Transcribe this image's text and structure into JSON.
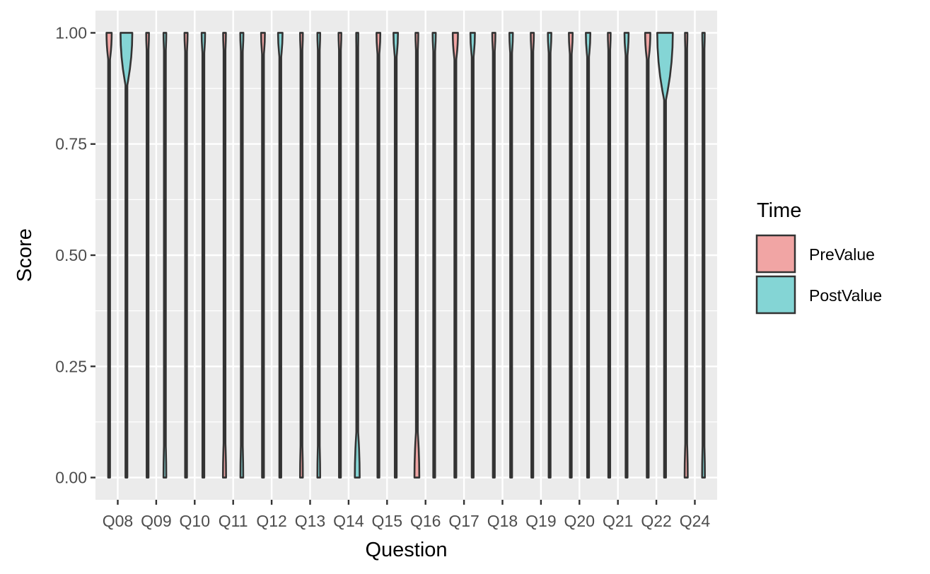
{
  "chart_data": {
    "type": "violin",
    "xlabel": "Question",
    "ylabel": "Score",
    "ylim": [
      -0.05,
      1.05
    ],
    "y_ticks": [
      "0.00",
      "0.25",
      "0.50",
      "0.75",
      "1.00"
    ],
    "y_tick_values": [
      0,
      0.25,
      0.5,
      0.75,
      1
    ],
    "categories": [
      "Q08",
      "Q09",
      "Q10",
      "Q11",
      "Q12",
      "Q13",
      "Q14",
      "Q15",
      "Q16",
      "Q17",
      "Q18",
      "Q19",
      "Q20",
      "Q21",
      "Q22",
      "Q24"
    ],
    "legend": {
      "title": "Time",
      "position": "right",
      "entries": [
        {
          "label": "PreValue",
          "color": "#F1A5A4"
        },
        {
          "label": "PostValue",
          "color": "#84D5D5"
        }
      ]
    },
    "grid": true,
    "panel_background": "#EBEBEB",
    "series": [
      {
        "name": "PreValue",
        "color": "#F1A5A4",
        "top_width": [
          0.3,
          0.16,
          0.18,
          0.16,
          0.22,
          0.16,
          0.16,
          0.22,
          0.16,
          0.3,
          0.18,
          0.18,
          0.22,
          0.16,
          0.3,
          0.14
        ],
        "bottom_width": [
          0.05,
          0.1,
          0.05,
          0.18,
          0.05,
          0.16,
          0.05,
          0.05,
          0.28,
          0.05,
          0.1,
          0.1,
          0.05,
          0.1,
          0.05,
          0.18
        ]
      },
      {
        "name": "PostValue",
        "color": "#84D5D5",
        "top_width": [
          0.68,
          0.16,
          0.2,
          0.18,
          0.26,
          0.16,
          0.12,
          0.26,
          0.18,
          0.26,
          0.2,
          0.2,
          0.26,
          0.24,
          0.9,
          0.14
        ],
        "bottom_width": [
          0.05,
          0.16,
          0.05,
          0.16,
          0.05,
          0.16,
          0.28,
          0.05,
          0.1,
          0.05,
          0.1,
          0.1,
          0.05,
          0.05,
          0.05,
          0.16
        ]
      }
    ]
  }
}
